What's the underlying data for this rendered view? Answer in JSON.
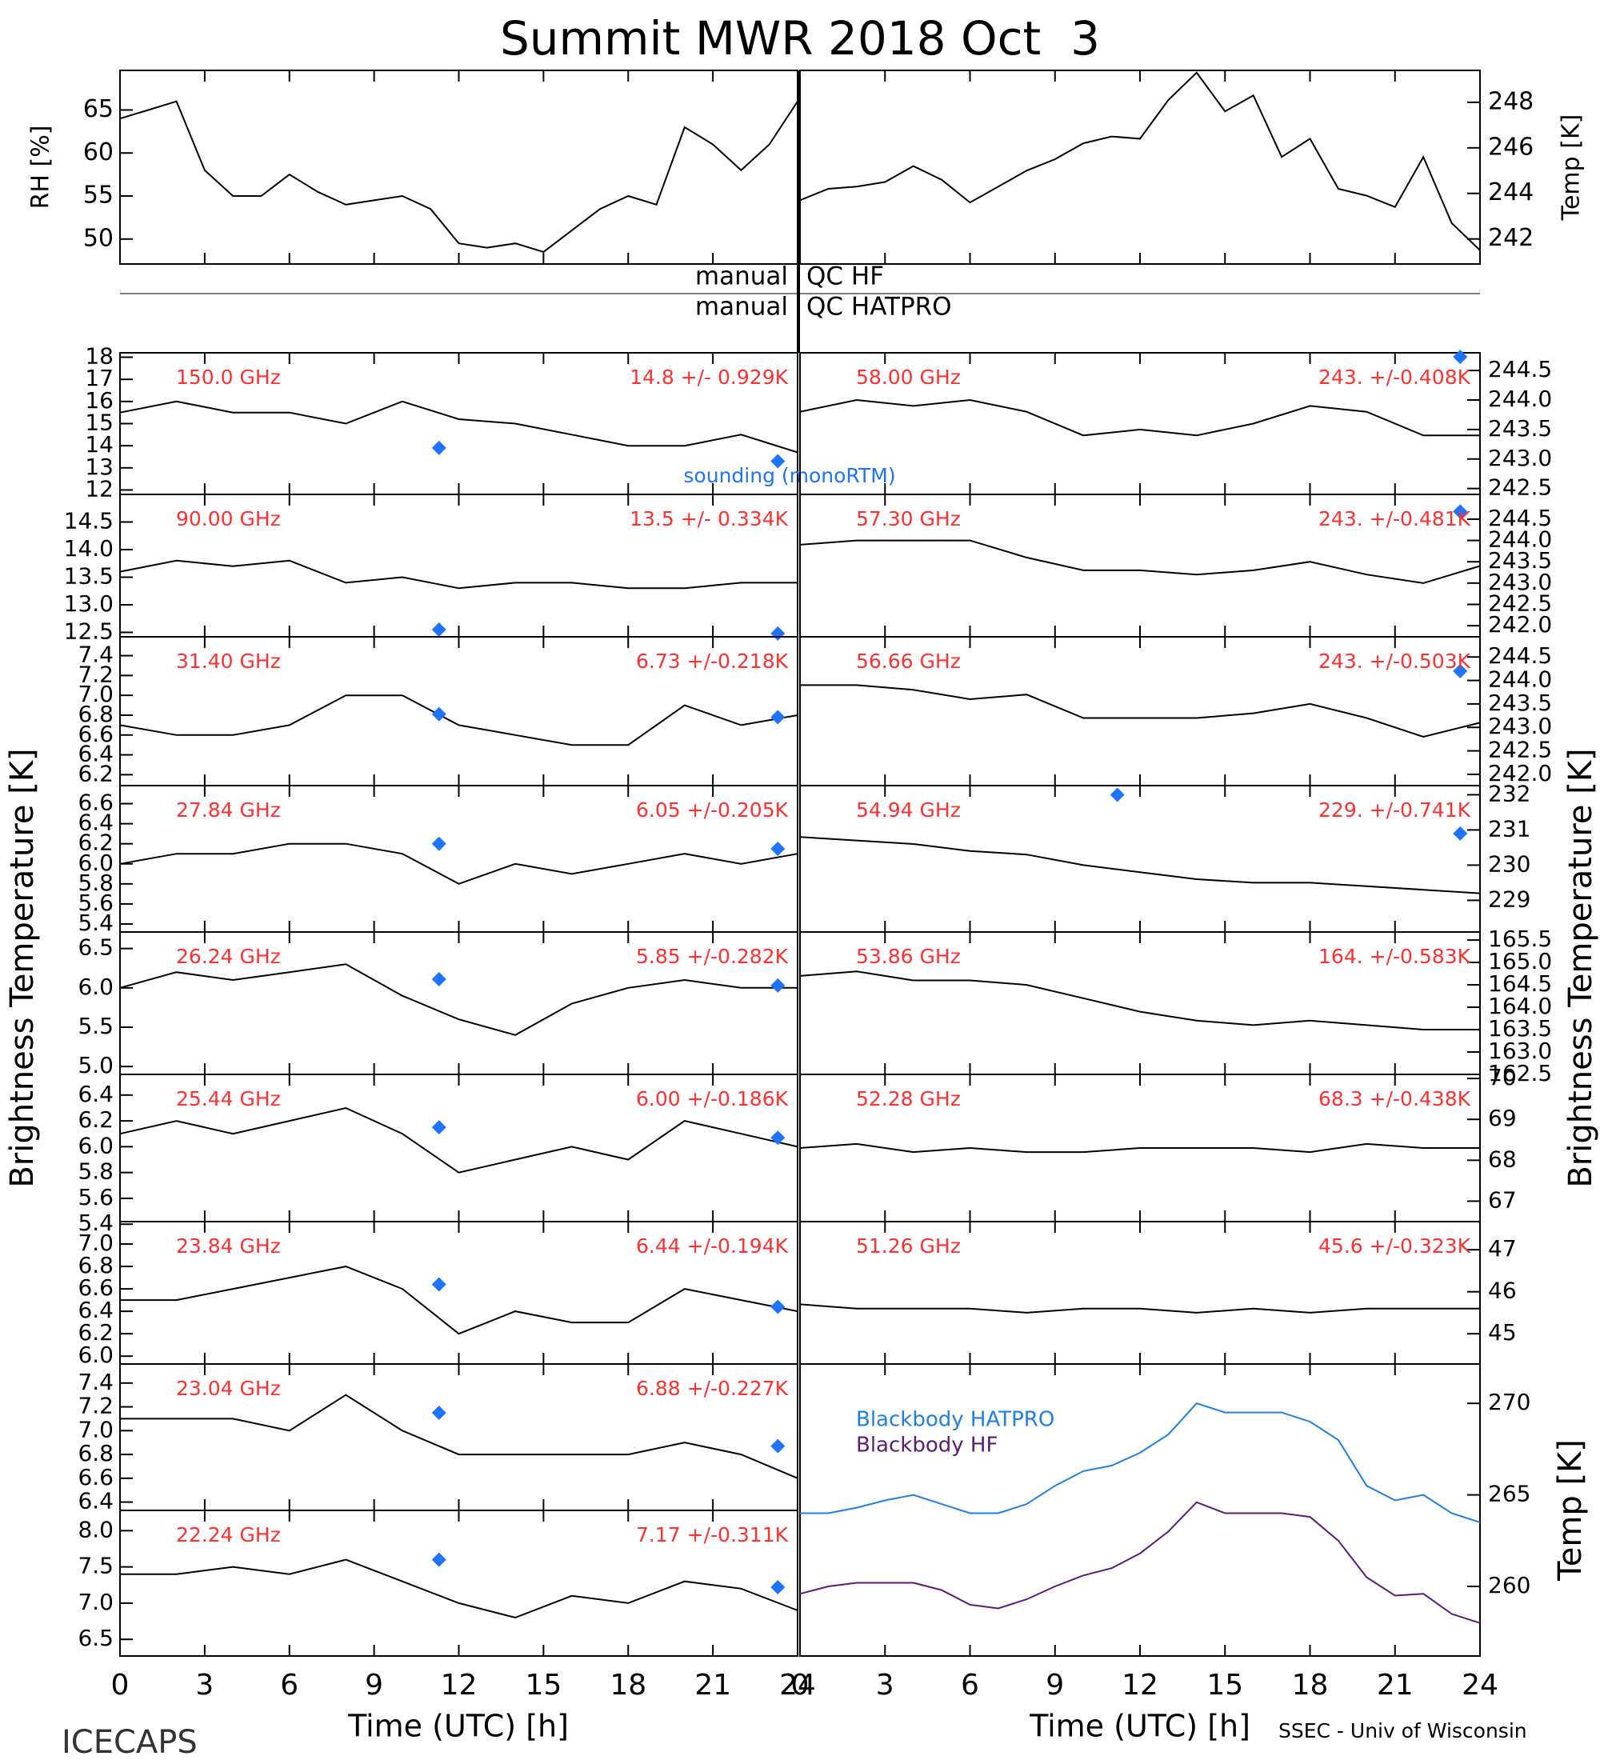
{
  "title": "Summit MWR 2018 Oct  3",
  "qc": [
    [
      "manual",
      "QC HF"
    ],
    [
      "manual",
      "QC HATPRO"
    ]
  ],
  "ylabel_left": "Brightness Temperature [K]",
  "ylabel_right": "Brightness Temperature [K]",
  "footer_left": "ICECAPS",
  "footer_right": "SSEC - Univ of Wisconsin",
  "time_axis": {
    "xlim": [
      0,
      24
    ],
    "xticks": [
      0,
      3,
      6,
      9,
      12,
      15,
      18,
      21,
      24
    ],
    "label": "Time (UTC) [h]"
  },
  "chart_data": [
    {
      "type": "line",
      "ylabel": "RH [%]",
      "color": "#000000",
      "x": [
        0,
        1,
        2,
        3,
        4,
        5,
        6,
        7,
        8,
        9,
        10,
        11,
        12,
        13,
        14,
        15,
        16,
        17,
        18,
        19,
        20,
        21,
        22,
        23,
        24
      ],
      "values": [
        64,
        65,
        66,
        58,
        55,
        55,
        57.5,
        55.5,
        54,
        54.5,
        55,
        53.5,
        49.5,
        49,
        49.5,
        48.5,
        51,
        53.5,
        55,
        54,
        63,
        61,
        58,
        61,
        66
      ],
      "ylim": [
        47.1,
        69.6
      ],
      "yticks": [
        50,
        55,
        60,
        65
      ]
    },
    {
      "type": "line",
      "ylabel": "Temp [K]",
      "color": "#000000",
      "x": [
        0,
        1,
        2,
        3,
        4,
        5,
        6,
        7,
        8,
        9,
        10,
        11,
        12,
        13,
        14,
        15,
        16,
        17,
        18,
        19,
        20,
        21,
        22,
        23,
        24
      ],
      "values": [
        243.7,
        244.2,
        244.3,
        244.5,
        245.2,
        244.6,
        243.6,
        244.3,
        245,
        245.5,
        246.2,
        246.5,
        246.4,
        248.1,
        249.3,
        247.6,
        248.3,
        245.6,
        246.4,
        244.2,
        243.9,
        243.4,
        245.6,
        242.7,
        241.5
      ],
      "ylim": [
        240.9,
        249.4
      ],
      "yticks": [
        242,
        244,
        246,
        248
      ]
    },
    {
      "type": "line",
      "label": "150.0 GHz",
      "stats": "14.8 +/- 0.929K",
      "annotation": "sounding (monoRTM)",
      "color": "#000000",
      "x": [
        0,
        2,
        4,
        6,
        8,
        10,
        12,
        14,
        16,
        18,
        20,
        22,
        24
      ],
      "values": [
        15.5,
        16,
        15.5,
        15.5,
        15,
        16,
        15.2,
        15,
        14.5,
        14,
        14,
        14.5,
        13.7
      ],
      "sounding": {
        "x": [
          11.3,
          23.3
        ],
        "values": [
          13.9,
          13.3
        ],
        "color": "#1e73ff"
      },
      "ylim": [
        11.8,
        18.2
      ],
      "yticks": [
        12,
        13,
        14,
        15,
        16,
        17,
        18
      ]
    },
    {
      "type": "line",
      "label": "90.00 GHz",
      "stats": "13.5 +/- 0.334K",
      "color": "#000000",
      "x": [
        0,
        2,
        4,
        6,
        8,
        10,
        12,
        14,
        16,
        18,
        20,
        22,
        24
      ],
      "values": [
        13.6,
        13.8,
        13.7,
        13.8,
        13.4,
        13.5,
        13.3,
        13.4,
        13.4,
        13.3,
        13.3,
        13.4,
        13.4
      ],
      "sounding": {
        "x": [
          11.3,
          23.3
        ],
        "values": [
          12.55,
          12.48
        ],
        "color": "#1e73ff"
      },
      "ylim": [
        12.42,
        15.0
      ],
      "yticks": [
        12.5,
        {
          "value": 13,
          "label": "13.0"
        },
        13.5,
        {
          "value": 14,
          "label": "14.0"
        },
        14.5
      ]
    },
    {
      "type": "line",
      "label": "31.40 GHz",
      "stats": "6.73 +/-0.218K",
      "color": "#000000",
      "x": [
        0,
        2,
        4,
        6,
        8,
        10,
        12,
        14,
        16,
        18,
        20,
        22,
        24
      ],
      "values": [
        6.7,
        6.6,
        6.6,
        6.7,
        7.0,
        7.0,
        6.7,
        6.6,
        6.5,
        6.5,
        6.9,
        6.7,
        6.8
      ],
      "sounding": {
        "x": [
          11.3,
          23.3
        ],
        "values": [
          6.81,
          6.78
        ],
        "color": "#1e73ff"
      },
      "ylim": [
        6.09,
        7.59
      ],
      "yticks": [
        6.2,
        6.4,
        6.6,
        6.8,
        {
          "value": 7,
          "label": "7.0"
        },
        7.2,
        7.4
      ]
    },
    {
      "type": "line",
      "label": "27.84 GHz",
      "stats": "6.05 +/-0.205K",
      "color": "#000000",
      "x": [
        0,
        2,
        4,
        6,
        8,
        10,
        12,
        14,
        16,
        18,
        20,
        22,
        24
      ],
      "values": [
        6.0,
        6.1,
        6.1,
        6.2,
        6.2,
        6.1,
        5.8,
        6.0,
        5.9,
        6.0,
        6.1,
        6.0,
        6.1
      ],
      "sounding": {
        "x": [
          11.3,
          23.3
        ],
        "values": [
          6.2,
          6.15
        ],
        "color": "#1e73ff"
      },
      "ylim": [
        5.32,
        6.78
      ],
      "yticks": [
        5.4,
        5.6,
        5.8,
        {
          "value": 6,
          "label": "6.0"
        },
        6.2,
        6.4,
        6.6
      ]
    },
    {
      "type": "line",
      "label": "26.24 GHz",
      "stats": "5.85 +/-0.282K",
      "color": "#000000",
      "x": [
        0,
        2,
        4,
        6,
        8,
        10,
        12,
        14,
        16,
        18,
        20,
        22,
        24
      ],
      "values": [
        6.0,
        6.2,
        6.1,
        6.2,
        6.3,
        5.9,
        5.6,
        5.4,
        5.8,
        6.0,
        6.1,
        6.0,
        6.0
      ],
      "sounding": {
        "x": [
          11.3,
          23.3
        ],
        "values": [
          6.11,
          6.03
        ],
        "color": "#1e73ff"
      },
      "ylim": [
        4.9,
        6.71
      ],
      "yticks": [
        {
          "value": 5,
          "label": "5.0"
        },
        5.5,
        {
          "value": 6,
          "label": "6.0"
        },
        6.5
      ]
    },
    {
      "type": "line",
      "label": "25.44 GHz",
      "stats": "6.00 +/-0.186K",
      "color": "#000000",
      "x": [
        0,
        2,
        4,
        6,
        8,
        10,
        12,
        14,
        16,
        18,
        20,
        22,
        24
      ],
      "values": [
        6.1,
        6.2,
        6.1,
        6.2,
        6.3,
        6.1,
        5.8,
        5.9,
        6.0,
        5.9,
        6.2,
        6.1,
        6.0
      ],
      "sounding": {
        "x": [
          11.3,
          23.3
        ],
        "values": [
          6.15,
          6.07
        ],
        "color": "#1e73ff"
      },
      "ylim": [
        5.42,
        6.56
      ],
      "yticks": [
        5.4,
        5.6,
        5.8,
        {
          "value": 6,
          "label": "6.0"
        },
        6.2,
        6.4
      ]
    },
    {
      "type": "line",
      "label": "23.84 GHz",
      "stats": "6.44 +/-0.194K",
      "color": "#000000",
      "x": [
        0,
        2,
        4,
        6,
        8,
        10,
        12,
        14,
        16,
        18,
        20,
        22,
        24
      ],
      "values": [
        6.5,
        6.5,
        6.6,
        6.7,
        6.8,
        6.6,
        6.2,
        6.4,
        6.3,
        6.3,
        6.6,
        6.5,
        6.4
      ],
      "sounding": {
        "x": [
          11.3,
          23.3
        ],
        "values": [
          6.64,
          6.44
        ],
        "color": "#1e73ff"
      },
      "ylim": [
        5.93,
        7.2
      ],
      "yticks": [
        {
          "value": 6,
          "label": "6.0"
        },
        6.2,
        6.4,
        6.6,
        6.8,
        {
          "value": 7,
          "label": "7.0"
        }
      ]
    },
    {
      "type": "line",
      "label": "23.04 GHz",
      "stats": "6.88 +/-0.227K",
      "color": "#000000",
      "x": [
        0,
        2,
        4,
        6,
        8,
        10,
        12,
        14,
        16,
        18,
        20,
        22,
        24
      ],
      "values": [
        7.1,
        7.1,
        7.1,
        7.0,
        7.3,
        7.0,
        6.8,
        6.8,
        6.8,
        6.8,
        6.9,
        6.8,
        6.6
      ],
      "sounding": {
        "x": [
          11.3,
          23.3
        ],
        "values": [
          7.15,
          6.87
        ],
        "color": "#1e73ff"
      },
      "ylim": [
        6.33,
        7.56
      ],
      "yticks": [
        6.4,
        6.6,
        6.8,
        {
          "value": 7,
          "label": "7.0"
        },
        7.2,
        7.4
      ]
    },
    {
      "type": "line",
      "label": "22.24 GHz",
      "stats": "7.17 +/-0.311K",
      "color": "#000000",
      "x": [
        0,
        2,
        4,
        6,
        8,
        10,
        12,
        14,
        16,
        18,
        20,
        22,
        24
      ],
      "values": [
        7.4,
        7.4,
        7.5,
        7.4,
        7.6,
        7.3,
        7.0,
        6.8,
        7.1,
        7.0,
        7.3,
        7.2,
        6.9
      ],
      "sounding": {
        "x": [
          11.3,
          23.3
        ],
        "values": [
          7.6,
          7.22
        ],
        "color": "#1e73ff"
      },
      "ylim": [
        6.27,
        8.28
      ],
      "yticks": [
        6.5,
        {
          "value": 7,
          "label": "7.0"
        },
        7.5,
        {
          "value": 8,
          "label": "8.0"
        }
      ]
    },
    {
      "type": "line",
      "label": "58.00 GHz",
      "stats": "243. +/-0.408K",
      "color": "#000000",
      "x": [
        0,
        2,
        4,
        6,
        8,
        10,
        12,
        14,
        16,
        18,
        20,
        22,
        24
      ],
      "values": [
        243.8,
        244.0,
        243.9,
        244.0,
        243.8,
        243.4,
        243.5,
        243.4,
        243.6,
        243.9,
        243.8,
        243.4,
        243.4
      ],
      "sounding": {
        "x": [
          23.3
        ],
        "values": [
          244.73
        ],
        "color": "#1e73ff"
      },
      "ylim": [
        242.4,
        244.8
      ],
      "yticks": [
        242.5,
        {
          "value": 243,
          "label": "243.0"
        },
        243.5,
        {
          "value": 244,
          "label": "244.0"
        },
        244.5
      ]
    },
    {
      "type": "line",
      "label": "57.30 GHz",
      "stats": "243. +/-0.481K",
      "color": "#000000",
      "x": [
        0,
        2,
        4,
        6,
        8,
        10,
        12,
        14,
        16,
        18,
        20,
        22,
        24
      ],
      "values": [
        243.9,
        244.0,
        244.0,
        244.0,
        243.6,
        243.3,
        243.3,
        243.2,
        243.3,
        243.5,
        243.2,
        243.0,
        243.4
      ],
      "sounding": {
        "x": [
          23.3
        ],
        "values": [
          244.68
        ],
        "color": "#1e73ff"
      },
      "ylim": [
        241.74,
        245.08
      ],
      "yticks": [
        {
          "value": 242,
          "label": "242.0"
        },
        242.5,
        {
          "value": 243,
          "label": "243.0"
        },
        243.5,
        {
          "value": 244,
          "label": "244.0"
        },
        244.5
      ]
    },
    {
      "type": "line",
      "label": "56.66 GHz",
      "stats": "243. +/-0.503K",
      "color": "#000000",
      "x": [
        0,
        2,
        4,
        6,
        8,
        10,
        12,
        14,
        16,
        18,
        20,
        22,
        24
      ],
      "values": [
        243.9,
        243.9,
        243.8,
        243.6,
        243.7,
        243.2,
        243.2,
        243.2,
        243.3,
        243.5,
        243.2,
        242.8,
        243.1
      ],
      "sounding": {
        "x": [
          23.3
        ],
        "values": [
          244.2
        ],
        "color": "#1e73ff"
      },
      "ylim": [
        241.76,
        244.93
      ],
      "yticks": [
        {
          "value": 242,
          "label": "242.0"
        },
        242.5,
        {
          "value": 243,
          "label": "243.0"
        },
        243.5,
        {
          "value": 244,
          "label": "244.0"
        },
        244.5
      ]
    },
    {
      "type": "line",
      "label": "54.94 GHz",
      "stats": "229. +/-0.741K",
      "color": "#000000",
      "x": [
        0,
        2,
        4,
        6,
        8,
        10,
        12,
        14,
        16,
        18,
        20,
        22,
        24
      ],
      "values": [
        230.8,
        230.7,
        230.6,
        230.4,
        230.3,
        230.0,
        229.8,
        229.6,
        229.5,
        229.5,
        229.4,
        229.3,
        229.2
      ],
      "sounding": {
        "x": [
          11.2,
          23.3
        ],
        "values": [
          232.0,
          230.9
        ],
        "color": "#1e73ff"
      },
      "ylim": [
        228.1,
        232.26
      ],
      "yticks": [
        229,
        230,
        231,
        232
      ]
    },
    {
      "type": "line",
      "label": "53.86 GHz",
      "stats": "164. +/-0.583K",
      "color": "#000000",
      "x": [
        0,
        2,
        4,
        6,
        8,
        10,
        12,
        14,
        16,
        18,
        20,
        22,
        24
      ],
      "values": [
        164.7,
        164.8,
        164.6,
        164.6,
        164.5,
        164.2,
        163.9,
        163.7,
        163.6,
        163.7,
        163.6,
        163.5,
        163.5
      ],
      "ylim": [
        162.5,
        165.68
      ],
      "yticks": [
        162.5,
        {
          "value": 163,
          "label": "163.0"
        },
        163.5,
        {
          "value": 164,
          "label": "164.0"
        },
        164.5,
        {
          "value": 165,
          "label": "165.0"
        },
        165.5
      ]
    },
    {
      "type": "line",
      "label": "52.28 GHz",
      "stats": "68.3 +/-0.438K",
      "color": "#000000",
      "x": [
        0,
        2,
        4,
        6,
        8,
        10,
        12,
        14,
        16,
        18,
        20,
        22,
        24
      ],
      "values": [
        68.3,
        68.4,
        68.2,
        68.3,
        68.2,
        68.2,
        68.3,
        68.3,
        68.3,
        68.2,
        68.4,
        68.3,
        68.3
      ],
      "ylim": [
        66.5,
        70.1
      ],
      "yticks": [
        67,
        68,
        69,
        70
      ]
    },
    {
      "type": "line",
      "label": "51.26 GHz",
      "stats": "45.6 +/-0.323K",
      "color": "#000000",
      "x": [
        0,
        2,
        4,
        6,
        8,
        10,
        12,
        14,
        16,
        18,
        20,
        22,
        24
      ],
      "values": [
        45.7,
        45.6,
        45.6,
        45.6,
        45.5,
        45.6,
        45.6,
        45.5,
        45.6,
        45.5,
        45.6,
        45.6,
        45.6
      ],
      "ylim": [
        44.28,
        47.67
      ],
      "yticks": [
        45,
        46,
        47
      ]
    },
    {
      "type": "line",
      "ylabel": "Temp [K]",
      "x": [
        0,
        1,
        2,
        3,
        4,
        5,
        6,
        7,
        8,
        9,
        10,
        11,
        12,
        13,
        14,
        15,
        16,
        17,
        18,
        19,
        20,
        21,
        22,
        23,
        24
      ],
      "series": [
        {
          "name": "Blackbody HATPRO",
          "color": "#1e7fe6",
          "values": [
            264,
            264,
            264.3,
            264.7,
            265,
            264.5,
            264,
            264,
            264.5,
            265.5,
            266.3,
            266.6,
            267.3,
            268.3,
            270,
            269.5,
            269.5,
            269.5,
            269,
            268,
            265.5,
            264.7,
            265,
            264,
            263.5
          ]
        },
        {
          "name": "Blackbody HF",
          "color": "#5b1a7a",
          "values": [
            259.6,
            260,
            260.2,
            260.2,
            260.2,
            259.8,
            259,
            258.8,
            259.3,
            260,
            260.6,
            261,
            261.8,
            263,
            264.6,
            264,
            264,
            264,
            263.8,
            262.5,
            260.5,
            259.5,
            259.6,
            258.5,
            258
          ]
        }
      ],
      "ylim": [
        256.2,
        272.15
      ],
      "yticks": [
        260,
        265,
        270
      ]
    }
  ]
}
